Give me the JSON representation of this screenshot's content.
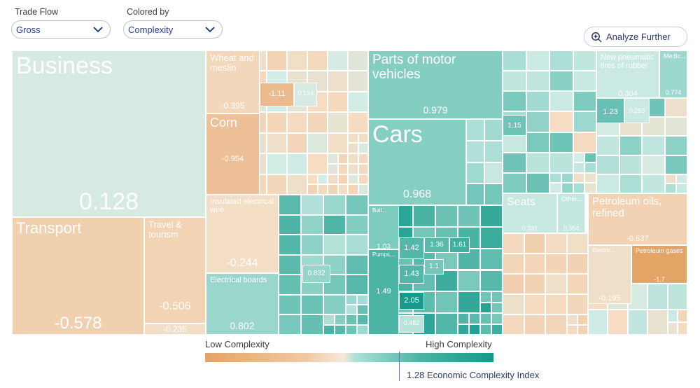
{
  "controls": {
    "trade_flow_label": "Trade Flow",
    "trade_flow_value": "Gross",
    "colored_by_label": "Colored by",
    "colored_by_value": "Complexity",
    "analyze_label": "Analyze Further"
  },
  "legend": {
    "low": "Low Complexity",
    "high": "High Complexity",
    "eci_value": 1.28,
    "eci_label": "1.28 Economic Complexity Index",
    "colors": {
      "low": "#e3a466",
      "high": "#14998a"
    }
  },
  "chart_data": {
    "type": "treemap",
    "color_metric": "Complexity",
    "items": [
      {
        "name": "Business",
        "value": 0.128
      },
      {
        "name": "Transport",
        "value": -0.578
      },
      {
        "name": "Travel & tourism",
        "value": -0.506
      },
      {
        "name": "",
        "value": -0.235
      },
      {
        "name": "Wheat and meslin",
        "value": -0.395
      },
      {
        "name": "Corn",
        "value": -0.954
      },
      {
        "name": "",
        "value": -1.11
      },
      {
        "name": "",
        "value": 0.134
      },
      {
        "name": "Insulated electrical wire",
        "value": -0.244
      },
      {
        "name": "Electrical boards",
        "value": 0.802
      },
      {
        "name": "",
        "value": 0.832
      },
      {
        "name": "Parts of motor vehicles",
        "value": 0.979
      },
      {
        "name": "Cars",
        "value": 0.968
      },
      {
        "name": "Ball...",
        "value": 1.03
      },
      {
        "name": "Pumps,...",
        "value": 1.49
      },
      {
        "name": "",
        "value": 1.42
      },
      {
        "name": "",
        "value": 1.36
      },
      {
        "name": "",
        "value": 1.61
      },
      {
        "name": "",
        "value": 1.1
      },
      {
        "name": "",
        "value": 1.43
      },
      {
        "name": "",
        "value": 2.05
      },
      {
        "name": "",
        "value": 0.482
      },
      {
        "name": "",
        "value": 1.15
      },
      {
        "name": "Seats",
        "value": 0.331
      },
      {
        "name": "Other...",
        "value": 0.354
      },
      {
        "name": "New pneumatic tires of rubber",
        "value": 0.304
      },
      {
        "name": "Medic...",
        "value": 0.774
      },
      {
        "name": "",
        "value": 1.23
      },
      {
        "name": "",
        "value": 0.293
      },
      {
        "name": "Petroleum oils, refined",
        "value": -0.537
      },
      {
        "name": "Electric...",
        "value": -0.195
      },
      {
        "name": "Petroleum gases",
        "value": -1.7
      }
    ]
  }
}
